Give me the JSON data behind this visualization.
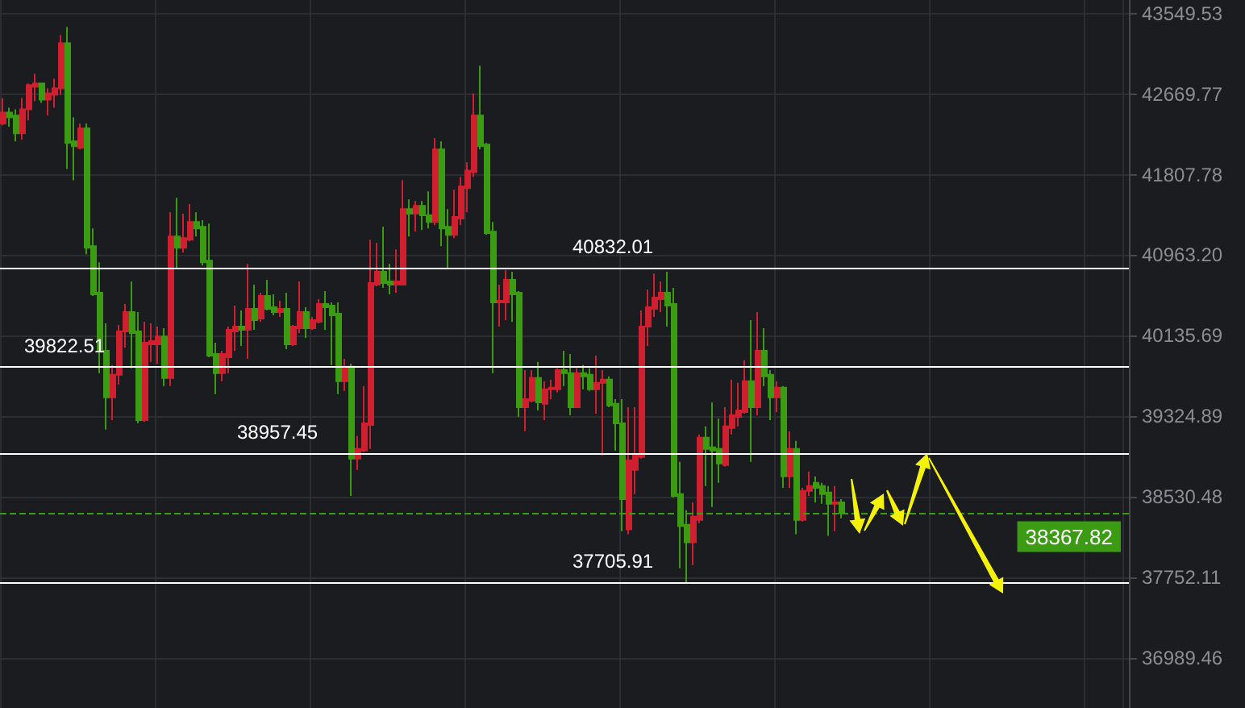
{
  "chart_data": {
    "type": "candlestick",
    "categories": [
      null,
      null,
      null,
      null,
      null,
      null,
      null,
      null,
      null,
      null,
      null,
      null,
      null,
      null,
      null,
      null,
      null,
      null,
      null,
      null,
      null,
      null,
      null,
      null,
      null,
      null,
      null,
      null,
      null,
      null,
      null,
      null,
      null,
      null,
      null,
      null,
      null,
      null,
      null,
      null,
      null,
      null,
      null,
      null,
      null,
      null,
      null,
      null,
      null,
      null,
      null,
      null,
      null,
      null,
      null,
      null,
      null,
      null,
      null,
      null,
      null,
      null,
      null,
      null,
      null,
      null,
      null,
      null,
      null,
      null,
      null,
      null,
      null,
      null,
      null,
      null,
      null,
      null,
      null,
      null,
      null,
      null,
      null,
      null,
      null,
      null,
      null,
      null,
      null,
      null,
      null,
      null,
      null,
      null,
      null,
      null,
      null,
      null,
      null,
      null,
      null,
      null,
      null,
      null,
      null,
      null,
      null,
      null,
      null,
      null,
      null,
      null,
      null,
      null,
      null,
      null,
      null,
      null,
      null,
      null,
      null,
      null,
      null,
      null,
      null,
      null,
      null,
      null,
      null,
      null,
      null,
      null,
      null,
      null,
      null,
      null,
      null,
      null,
      null,
      null,
      null,
      null,
      null,
      null,
      null,
      null,
      null,
      null,
      null,
      null,
      null,
      null,
      null,
      null,
      null,
      null,
      null,
      null,
      null,
      null,
      null,
      null,
      null,
      null,
      null,
      null,
      null,
      null,
      null,
      null,
      null,
      null,
      null,
      null,
      null
    ],
    "ohlc": [
      [
        42352,
        42627,
        42334,
        42472
      ],
      [
        42472,
        42524,
        42317,
        42420
      ],
      [
        42438,
        42507,
        42162,
        42248
      ],
      [
        42248,
        42627,
        42179,
        42507
      ],
      [
        42507,
        42785,
        42386,
        42767
      ],
      [
        42750,
        42890,
        42593,
        42785
      ],
      [
        42785,
        42785,
        42576,
        42610
      ],
      [
        42610,
        42732,
        42438,
        42679
      ],
      [
        42662,
        42838,
        42524,
        42732
      ],
      [
        42732,
        43313,
        42662,
        43225
      ],
      [
        43225,
        43401,
        41869,
        42145
      ],
      [
        42162,
        42420,
        41749,
        42110
      ],
      [
        42093,
        42352,
        42076,
        42300
      ],
      [
        42300,
        42352,
        40972,
        41039
      ],
      [
        41056,
        41242,
        40542,
        40558
      ],
      [
        40575,
        40889,
        39755,
        39982
      ],
      [
        39982,
        40261,
        39190,
        39512
      ],
      [
        39512,
        39836,
        39285,
        39739
      ],
      [
        39739,
        40244,
        39641,
        40178
      ],
      [
        40178,
        40459,
        40014,
        40376
      ],
      [
        40376,
        40690,
        39804,
        40161
      ],
      [
        40178,
        40376,
        39253,
        39285
      ],
      [
        39285,
        40277,
        39269,
        40063
      ],
      [
        40047,
        40261,
        39869,
        40079
      ],
      [
        40047,
        40227,
        39852,
        40128
      ],
      [
        40128,
        40211,
        39625,
        39706
      ],
      [
        39706,
        41411,
        39625,
        41158
      ],
      [
        41158,
        41563,
        40823,
        41039
      ],
      [
        41039,
        41395,
        40989,
        41141
      ],
      [
        41124,
        41497,
        41107,
        41310
      ],
      [
        41310,
        41411,
        41158,
        41242
      ],
      [
        41259,
        41327,
        40856,
        40889
      ],
      [
        40906,
        41293,
        39917,
        39933
      ],
      [
        39950,
        40063,
        39544,
        39755
      ],
      [
        39755,
        39982,
        39674,
        39950
      ],
      [
        39917,
        40227,
        39755,
        40194
      ],
      [
        40178,
        40442,
        39982,
        40227
      ],
      [
        40227,
        40393,
        40031,
        40194
      ],
      [
        40194,
        40872,
        39901,
        40409
      ],
      [
        40409,
        40657,
        40194,
        40294
      ],
      [
        40310,
        40575,
        40277,
        40542
      ],
      [
        40542,
        40707,
        40393,
        40409
      ],
      [
        40426,
        40558,
        40343,
        40376
      ],
      [
        40376,
        40492,
        40327,
        40409
      ],
      [
        40409,
        40575,
        39998,
        40047
      ],
      [
        40047,
        40244,
        40031,
        40227
      ],
      [
        40211,
        40690,
        40161,
        40376
      ],
      [
        40376,
        40426,
        40112,
        40211
      ],
      [
        40211,
        40327,
        40194,
        40294
      ],
      [
        40277,
        40509,
        40261,
        40459
      ],
      [
        40459,
        40591,
        40194,
        40426
      ],
      [
        40442,
        40475,
        39836,
        40343
      ],
      [
        40360,
        40475,
        39544,
        39674
      ],
      [
        39674,
        39901,
        39577,
        39820
      ],
      [
        39820,
        39852,
        38538,
        38903
      ],
      [
        38903,
        39126,
        38792,
        38999
      ],
      [
        38983,
        39625,
        38967,
        39253
      ],
      [
        39237,
        41124,
        38999,
        40674
      ],
      [
        40657,
        41090,
        40641,
        40790
      ],
      [
        40790,
        41259,
        40624,
        40674
      ],
      [
        40690,
        40872,
        40558,
        40657
      ],
      [
        40657,
        41022,
        40575,
        40690
      ],
      [
        40657,
        41749,
        40657,
        41445
      ],
      [
        41445,
        41546,
        41158,
        41395
      ],
      [
        41395,
        41530,
        41208,
        41479
      ],
      [
        41479,
        41530,
        41225,
        41378
      ],
      [
        41378,
        41631,
        41242,
        41310
      ],
      [
        41310,
        42196,
        41276,
        42076
      ],
      [
        42076,
        42162,
        41056,
        41242
      ],
      [
        41259,
        41445,
        40823,
        41175
      ],
      [
        41175,
        41648,
        41141,
        41361
      ],
      [
        41344,
        41783,
        41276,
        41682
      ],
      [
        41665,
        41938,
        41411,
        41851
      ],
      [
        41834,
        42679,
        41783,
        42438
      ],
      [
        42438,
        42978,
        42076,
        42110
      ],
      [
        42127,
        42145,
        41175,
        41192
      ],
      [
        41208,
        41310,
        39755,
        40475
      ],
      [
        40475,
        40657,
        40227,
        40492
      ],
      [
        40475,
        40806,
        40294,
        40707
      ],
      [
        40707,
        40790,
        40277,
        40558
      ],
      [
        40575,
        40591,
        39317,
        39414
      ],
      [
        39414,
        39787,
        39174,
        39495
      ],
      [
        39479,
        39787,
        39463,
        39706
      ],
      [
        39706,
        39869,
        39382,
        39463
      ],
      [
        39447,
        39674,
        39285,
        39593
      ],
      [
        39593,
        39690,
        39495,
        39609
      ],
      [
        39593,
        39804,
        39560,
        39787
      ],
      [
        39787,
        39982,
        39625,
        39755
      ],
      [
        39755,
        39950,
        39333,
        39414
      ],
      [
        39414,
        39804,
        39414,
        39755
      ],
      [
        39755,
        39836,
        39593,
        39723
      ],
      [
        39739,
        39804,
        39577,
        39593
      ],
      [
        39593,
        39933,
        39350,
        39658
      ],
      [
        39658,
        39787,
        38935,
        39690
      ],
      [
        39690,
        39723,
        39414,
        39431
      ],
      [
        39447,
        39495,
        38983,
        39253
      ],
      [
        39253,
        39495,
        38195,
        38506
      ],
      [
        38211,
        39414,
        38164,
        38888
      ],
      [
        38792,
        39414,
        38554,
        38935
      ],
      [
        38919,
        40393,
        38903,
        40227
      ],
      [
        40227,
        40608,
        40031,
        40426
      ],
      [
        40409,
        40773,
        40327,
        40525
      ],
      [
        40509,
        40690,
        40376,
        40575
      ],
      [
        40575,
        40790,
        40227,
        40442
      ],
      [
        40459,
        40624,
        38522,
        38538
      ],
      [
        38554,
        38872,
        37837,
        38242
      ],
      [
        38257,
        38397,
        37697,
        38086
      ],
      [
        38086,
        38475,
        37868,
        38335
      ],
      [
        38304,
        39142,
        38273,
        39110
      ],
      [
        39110,
        39222,
        38633,
        38999
      ],
      [
        39015,
        39463,
        38429,
        38983
      ],
      [
        38999,
        39301,
        38665,
        38856
      ],
      [
        38840,
        39414,
        38824,
        39222
      ],
      [
        39206,
        39690,
        39142,
        39333
      ],
      [
        39317,
        39658,
        39222,
        39382
      ],
      [
        39366,
        39885,
        39350,
        39674
      ],
      [
        39674,
        40294,
        38872,
        39414
      ],
      [
        39414,
        40376,
        39333,
        39982
      ],
      [
        39982,
        40211,
        39625,
        39723
      ],
      [
        39739,
        39787,
        39285,
        39512
      ],
      [
        39512,
        39674,
        39366,
        39609
      ],
      [
        39609,
        39625,
        38617,
        38729
      ],
      [
        38729,
        39174,
        38617,
        38999
      ],
      [
        38999,
        39078,
        38164,
        38304
      ],
      [
        38304,
        38617,
        38288,
        38586
      ],
      [
        38586,
        38776,
        38538,
        38633
      ],
      [
        38665,
        38729,
        38475,
        38617
      ],
      [
        38633,
        38665,
        38460,
        38554
      ],
      [
        38570,
        38633,
        38149,
        38460
      ],
      [
        38460,
        38633,
        38195,
        38475
      ],
      [
        38475,
        38506,
        38320,
        38367.82
      ],
      null,
      null,
      null,
      null,
      null,
      null,
      null,
      null,
      null,
      null,
      null,
      null,
      null,
      null,
      null,
      null,
      null,
      null,
      null,
      null,
      null,
      null,
      null,
      null,
      null,
      null,
      null,
      null,
      null,
      null,
      null,
      null,
      null,
      null,
      null,
      null,
      null,
      null,
      null,
      null,
      null,
      null,
      null,
      null
    ],
    "colors": [
      "#d01f2e",
      "#3b9c13",
      "#3b9c13",
      "#d01f2e",
      "#d01f2e",
      "#d01f2e",
      "#3b9c13",
      "#d01f2e",
      "#d01f2e",
      "#d01f2e",
      "#3b9c13",
      "#3b9c13",
      "#d01f2e",
      "#3b9c13",
      "#3b9c13",
      "#3b9c13",
      "#3b9c13",
      "#d01f2e",
      "#d01f2e",
      "#d01f2e",
      "#3b9c13",
      "#3b9c13",
      "#d01f2e",
      "#d01f2e",
      "#d01f2e",
      "#3b9c13",
      "#d01f2e",
      "#3b9c13",
      "#d01f2e",
      "#d01f2e",
      "#3b9c13",
      "#3b9c13",
      "#3b9c13",
      "#3b9c13",
      "#d01f2e",
      "#d01f2e",
      "#d01f2e",
      "#3b9c13",
      "#d01f2e",
      "#3b9c13",
      "#d01f2e",
      "#3b9c13",
      "#3b9c13",
      "#d01f2e",
      "#3b9c13",
      "#d01f2e",
      "#d01f2e",
      "#3b9c13",
      "#d01f2e",
      "#d01f2e",
      "#3b9c13",
      "#3b9c13",
      "#3b9c13",
      "#d01f2e",
      "#3b9c13",
      "#d01f2e",
      "#d01f2e",
      "#d01f2e",
      "#d01f2e",
      "#3b9c13",
      "#3b9c13",
      "#d01f2e",
      "#d01f2e",
      "#3b9c13",
      "#d01f2e",
      "#3b9c13",
      "#3b9c13",
      "#d01f2e",
      "#3b9c13",
      "#3b9c13",
      "#d01f2e",
      "#d01f2e",
      "#d01f2e",
      "#d01f2e",
      "#3b9c13",
      "#3b9c13",
      "#3b9c13",
      "#d01f2e",
      "#d01f2e",
      "#3b9c13",
      "#3b9c13",
      "#d01f2e",
      "#d01f2e",
      "#3b9c13",
      "#d01f2e",
      "#d01f2e",
      "#d01f2e",
      "#3b9c13",
      "#3b9c13",
      "#d01f2e",
      "#3b9c13",
      "#3b9c13",
      "#d01f2e",
      "#d01f2e",
      "#3b9c13",
      "#3b9c13",
      "#3b9c13",
      "#d01f2e",
      "#d01f2e",
      "#d01f2e",
      "#d01f2e",
      "#d01f2e",
      "#d01f2e",
      "#3b9c13",
      "#3b9c13",
      "#3b9c13",
      "#3b9c13",
      "#d01f2e",
      "#d01f2e",
      "#3b9c13",
      "#3b9c13",
      "#3b9c13",
      "#d01f2e",
      "#d01f2e",
      "#d01f2e",
      "#d01f2e",
      "#3b9c13",
      "#d01f2e",
      "#3b9c13",
      "#3b9c13",
      "#d01f2e",
      "#3b9c13",
      "#d01f2e",
      "#3b9c13",
      "#d01f2e",
      "#d01f2e",
      "#3b9c13",
      "#3b9c13",
      "#3b9c13",
      "#d01f2e",
      "#3b9c13",
      null,
      null,
      null,
      null,
      null,
      null,
      null,
      null,
      null,
      null,
      null,
      null,
      null,
      null,
      null,
      null,
      null,
      null,
      null,
      null,
      null,
      null,
      null,
      null,
      null,
      null,
      null,
      null,
      null,
      null,
      null,
      null,
      null,
      null,
      null,
      null,
      null,
      null,
      null,
      null,
      null,
      null,
      null,
      null
    ],
    "ylim": [
      36520,
      43700
    ],
    "yticks": [
      43549.53,
      42669.77,
      41807.78,
      {
        "value": 40963.2,
        "label": "40963.20"
      },
      40135.69,
      39324.89,
      38530.48,
      37752.11,
      36989.46
    ],
    "log": "y",
    "grid": true,
    "tick_labels": "y",
    "ref_lines": [
      {
        "axis": "y",
        "value": 40832.01,
        "label": "40832.01",
        "color": "#ffffff"
      },
      {
        "axis": "y",
        "value": 39822.51,
        "label": "39822.51",
        "color": "#ffffff"
      },
      {
        "axis": "y",
        "value": 38957.45,
        "label": "38957.45",
        "color": "#ffffff"
      },
      {
        "axis": "y",
        "value": 37705.91,
        "label": "37705.91",
        "color": "#ffffff"
      },
      {
        "axis": "y",
        "value": 38367.82,
        "label": "38367.82",
        "color": "#3b9c13",
        "line_style": "dashed"
      }
    ]
  }
}
